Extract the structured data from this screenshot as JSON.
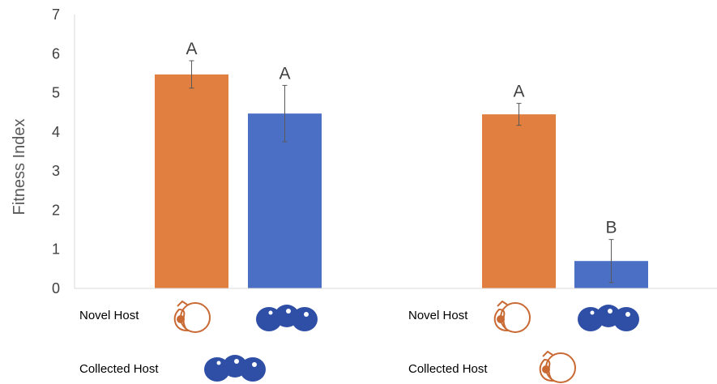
{
  "chart_data": {
    "type": "bar",
    "ylabel": "Fitness Index",
    "ylim": [
      0,
      7
    ],
    "yticks": [
      0,
      1,
      2,
      3,
      4,
      5,
      6,
      7
    ],
    "grid": false,
    "legend": "none",
    "groups": [
      {
        "bars": [
          {
            "value": 5.47,
            "error": 0.35,
            "letter": "A",
            "color": "#E07F3F",
            "fruit": "peach"
          },
          {
            "value": 4.47,
            "error": 0.72,
            "letter": "A",
            "color": "#4A6FC4",
            "fruit": "blueberry"
          }
        ]
      },
      {
        "bars": [
          {
            "value": 4.45,
            "error": 0.28,
            "letter": "A",
            "color": "#E07F3F",
            "fruit": "peach"
          },
          {
            "value": 0.7,
            "error": 0.55,
            "letter": "B",
            "color": "#4A6FC4",
            "fruit": "blueberry"
          }
        ]
      }
    ]
  },
  "host_labels": {
    "left": {
      "novel": "Novel Host",
      "collected": "Collected Host",
      "collected_fruit": "blueberry"
    },
    "right": {
      "novel": "Novel Host",
      "collected": "Collected Host",
      "collected_fruit": "peach"
    }
  },
  "colors": {
    "peach": "#E07F3F",
    "blueberry": "#4A6FC4",
    "peach_icon": "#C96A35",
    "blueberry_icon": "#2F4FA6"
  }
}
